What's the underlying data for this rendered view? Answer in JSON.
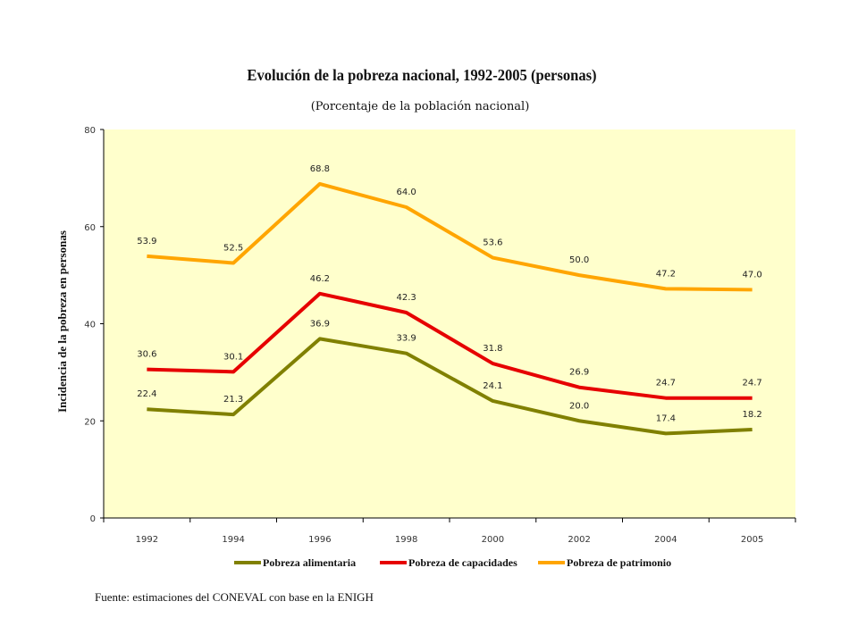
{
  "chart_data": {
    "type": "line",
    "title": "Evolución de la pobreza nacional, 1992-2005 (personas)",
    "subtitle": "(Porcentaje de la población nacional)",
    "xlabel": "",
    "ylabel": "Incidencia de la pobreza en personas",
    "categories": [
      "1992",
      "1994",
      "1996",
      "1998",
      "2000",
      "2002",
      "2004",
      "2005"
    ],
    "ylim": [
      0,
      80
    ],
    "yticks": [
      0,
      20,
      40,
      60,
      80
    ],
    "grid": false,
    "legend_position": "bottom",
    "plot_background": "#ffffcc",
    "series": [
      {
        "name": "Pobreza alimentaria",
        "color": "#808000",
        "values": [
          22.4,
          21.3,
          36.9,
          33.9,
          24.1,
          20.0,
          17.4,
          18.2
        ]
      },
      {
        "name": "Pobreza de capacidades",
        "color": "#e60000",
        "values": [
          30.6,
          30.1,
          46.2,
          42.3,
          31.8,
          26.9,
          24.7,
          24.7
        ]
      },
      {
        "name": "Pobreza de patrimonio",
        "color": "#ffa500",
        "values": [
          53.9,
          52.5,
          68.8,
          64.0,
          53.6,
          50.0,
          47.2,
          47.0
        ]
      }
    ]
  },
  "source_note": "Fuente: estimaciones del CONEVAL con base en la ENIGH"
}
